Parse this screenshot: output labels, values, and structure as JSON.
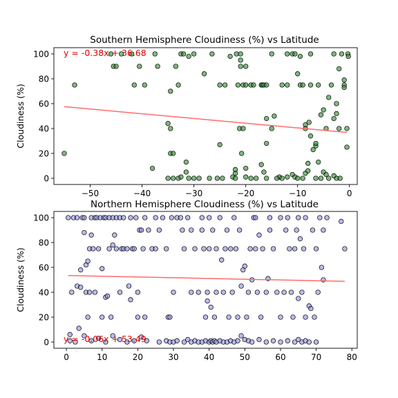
{
  "chart_data": [
    {
      "type": "scatter",
      "title": "Southern Hemisphere Cloudiness (%) vs Latitude",
      "xlabel": "",
      "ylabel": "Cloudiness (%)",
      "xlim": [
        -57,
        1.5
      ],
      "ylim": [
        -5,
        105
      ],
      "xticks": [
        -50,
        -40,
        -30,
        -20,
        -10,
        0
      ],
      "yticks": [
        0,
        20,
        40,
        60,
        80,
        100
      ],
      "grid": false,
      "point_color": "#2e8b2e",
      "point_edge": "#000000",
      "line_color": "#ff6b6b",
      "regression": {
        "slope": -0.38,
        "intercept": 36.68,
        "equation": "y = -0.38x + 36.68",
        "x_start": -55,
        "x_end": -0.5
      },
      "points": [
        [
          -55,
          20
        ],
        [
          -53,
          75
        ],
        [
          -46,
          100
        ],
        [
          -45.5,
          90
        ],
        [
          -45,
          90
        ],
        [
          -44,
          100
        ],
        [
          -42,
          100
        ],
        [
          -41.5,
          75
        ],
        [
          -40.5,
          90
        ],
        [
          -39.5,
          75
        ],
        [
          -37.5,
          100
        ],
        [
          -37,
          90
        ],
        [
          -38,
          8
        ],
        [
          -35,
          44
        ],
        [
          -34.5,
          40
        ],
        [
          -34.5,
          70
        ],
        [
          -34.5,
          20
        ],
        [
          -34,
          20
        ],
        [
          -33.5,
          90
        ],
        [
          -33,
          75
        ],
        [
          -32.5,
          100
        ],
        [
          -32,
          100
        ],
        [
          -31.5,
          13
        ],
        [
          -31.5,
          5
        ],
        [
          -31,
          98
        ],
        [
          -30,
          100
        ],
        [
          -28,
          84
        ],
        [
          -26.5,
          100
        ],
        [
          -25,
          75
        ],
        [
          -25,
          27
        ],
        [
          -24,
          75
        ],
        [
          -23,
          98
        ],
        [
          -22.5,
          1
        ],
        [
          -22,
          4
        ],
        [
          -22,
          7
        ],
        [
          -21.8,
          100
        ],
        [
          -21.5,
          75
        ],
        [
          -21,
          100
        ],
        [
          -21,
          95
        ],
        [
          -21,
          90
        ],
        [
          -21.2,
          40
        ],
        [
          -20.8,
          20
        ],
        [
          -20.5,
          40
        ],
        [
          -20.5,
          75
        ],
        [
          -20,
          90
        ],
        [
          -20,
          75
        ],
        [
          -20,
          8
        ],
        [
          -19,
          75
        ],
        [
          -18.5,
          75
        ],
        [
          -17,
          75
        ],
        [
          -16.8,
          75
        ],
        [
          -16.5,
          75
        ],
        [
          -16,
          75
        ],
        [
          -17,
          11
        ],
        [
          -16.5,
          5
        ],
        [
          -16,
          28
        ],
        [
          -16,
          48
        ],
        [
          -15,
          100
        ],
        [
          -15,
          40
        ],
        [
          -14.5,
          50
        ],
        [
          -13.5,
          1
        ],
        [
          -13,
          75
        ],
        [
          -12,
          75
        ],
        [
          -12,
          100
        ],
        [
          -11,
          100
        ],
        [
          -10.5,
          100
        ],
        [
          -11,
          3
        ],
        [
          -10.5,
          1
        ],
        [
          -10,
          84
        ],
        [
          -9.5,
          75
        ],
        [
          -9.5,
          98
        ],
        [
          -9,
          75
        ],
        [
          -8.5,
          40
        ],
        [
          -8.5,
          43
        ],
        [
          -8.5,
          4
        ],
        [
          -8,
          12
        ],
        [
          -8,
          6
        ],
        [
          -7.8,
          45
        ],
        [
          -7.5,
          34
        ],
        [
          -7.5,
          75
        ],
        [
          -7.5,
          100
        ],
        [
          -7,
          23
        ],
        [
          -6.5,
          26
        ],
        [
          -6.5,
          28
        ],
        [
          -6,
          13
        ],
        [
          -6,
          75
        ],
        [
          -5.5,
          51
        ],
        [
          -5,
          55
        ],
        [
          -5,
          5
        ],
        [
          -4.5,
          3
        ],
        [
          -4.5,
          40
        ],
        [
          -4,
          65
        ],
        [
          -3.5,
          75
        ],
        [
          -3,
          48
        ],
        [
          -3,
          100
        ],
        [
          -2.5,
          60
        ],
        [
          -2.5,
          52
        ],
        [
          -2,
          88
        ],
        [
          -2,
          40
        ],
        [
          -1.5,
          100
        ],
        [
          -1,
          79
        ],
        [
          -1,
          75
        ],
        [
          -1,
          73
        ],
        [
          -0.5,
          25
        ],
        [
          -0.5,
          40
        ],
        [
          -0.3,
          100
        ],
        [
          -0.2,
          98
        ],
        [
          -2.5,
          0
        ],
        [
          -5.5,
          0
        ],
        [
          -10,
          0
        ],
        [
          -13,
          0
        ],
        [
          -16,
          0
        ],
        [
          -19,
          0
        ],
        [
          -22,
          0
        ],
        [
          -24.5,
          0
        ],
        [
          -27,
          0
        ],
        [
          -29,
          0
        ],
        [
          -31,
          0
        ],
        [
          -33,
          0
        ],
        [
          -34,
          0
        ],
        [
          -35,
          0
        ],
        [
          -30,
          0
        ],
        [
          -25.5,
          0
        ],
        [
          -18,
          0
        ],
        [
          -14,
          0
        ],
        [
          -9,
          0
        ],
        [
          -6.5,
          0
        ],
        [
          -4,
          0
        ],
        [
          -1.8,
          0
        ],
        [
          -12,
          1
        ],
        [
          -20,
          1
        ],
        [
          -32.5,
          1
        ],
        [
          -3,
          2
        ]
      ]
    },
    {
      "type": "scatter",
      "title": "Northern Hemisphere Cloudiness (%) vs Latitude",
      "xlabel": "",
      "ylabel": "Cloudiness (%)",
      "xlim": [
        -3.5,
        81.5
      ],
      "ylim": [
        -5,
        105
      ],
      "xticks": [
        0,
        10,
        20,
        30,
        40,
        50,
        60,
        70,
        80
      ],
      "yticks": [
        0,
        20,
        40,
        60,
        80,
        100
      ],
      "grid": false,
      "point_color": "#8f8fe0",
      "point_edge": "#000000",
      "line_color": "#ff6b6b",
      "regression": {
        "slope": -0.06,
        "intercept": 53.49,
        "equation": "y = -0.06x + 53.49",
        "x_start": 0.5,
        "x_end": 78
      },
      "points": [
        [
          0.5,
          100
        ],
        [
          1,
          6
        ],
        [
          1.5,
          40
        ],
        [
          2,
          100
        ],
        [
          3,
          100
        ],
        [
          3,
          45
        ],
        [
          3.5,
          11
        ],
        [
          4,
          44
        ],
        [
          4,
          58
        ],
        [
          4.5,
          100
        ],
        [
          5,
          88
        ],
        [
          5,
          100
        ],
        [
          5.5,
          62
        ],
        [
          5.5,
          40
        ],
        [
          6,
          65
        ],
        [
          6,
          20
        ],
        [
          6.5,
          75
        ],
        [
          6.5,
          40
        ],
        [
          7,
          100
        ],
        [
          7,
          86
        ],
        [
          7.5,
          75
        ],
        [
          8,
          100
        ],
        [
          8,
          40
        ],
        [
          8.5,
          100
        ],
        [
          9,
          75
        ],
        [
          9.5,
          100
        ],
        [
          10,
          59
        ],
        [
          10,
          20
        ],
        [
          10.5,
          100
        ],
        [
          11,
          100
        ],
        [
          11,
          36
        ],
        [
          11.5,
          37
        ],
        [
          12,
          100
        ],
        [
          12,
          75
        ],
        [
          12.5,
          20
        ],
        [
          13,
          100
        ],
        [
          13,
          78
        ],
        [
          13.5,
          86
        ],
        [
          14,
          100
        ],
        [
          14,
          75
        ],
        [
          15,
          100
        ],
        [
          15,
          40
        ],
        [
          15.5,
          75
        ],
        [
          16,
          100
        ],
        [
          16,
          75
        ],
        [
          17,
          75
        ],
        [
          17.5,
          45
        ],
        [
          18,
          100
        ],
        [
          18,
          34
        ],
        [
          18.5,
          75
        ],
        [
          19,
          75
        ],
        [
          19.5,
          100
        ],
        [
          20,
          40
        ],
        [
          20,
          20
        ],
        [
          20.5,
          90
        ],
        [
          21,
          90
        ],
        [
          21.5,
          75
        ],
        [
          22,
          100
        ],
        [
          22,
          20
        ],
        [
          23,
          90
        ],
        [
          24,
          75
        ],
        [
          25,
          100
        ],
        [
          25,
          75
        ],
        [
          26,
          90
        ],
        [
          27,
          100
        ],
        [
          28,
          75
        ],
        [
          28.5,
          20
        ],
        [
          29,
          20
        ],
        [
          29.5,
          100
        ],
        [
          30,
          40
        ],
        [
          31,
          100
        ],
        [
          32,
          100
        ],
        [
          32.5,
          90
        ],
        [
          33,
          75
        ],
        [
          34,
          100
        ],
        [
          35,
          40
        ],
        [
          35,
          90
        ],
        [
          36,
          75
        ],
        [
          37,
          40
        ],
        [
          38,
          90
        ],
        [
          38,
          100
        ],
        [
          38.5,
          75
        ],
        [
          39,
          20
        ],
        [
          39.5,
          40
        ],
        [
          39.5,
          33
        ],
        [
          40,
          75
        ],
        [
          40,
          100
        ],
        [
          40.5,
          28
        ],
        [
          41,
          90
        ],
        [
          41.5,
          20
        ],
        [
          42,
          40
        ],
        [
          42,
          75
        ],
        [
          43,
          100
        ],
        [
          43.5,
          66
        ],
        [
          44,
          40
        ],
        [
          44.5,
          75
        ],
        [
          45,
          90
        ],
        [
          45.5,
          20
        ],
        [
          46,
          75
        ],
        [
          46.5,
          40
        ],
        [
          47,
          100
        ],
        [
          47.5,
          75
        ],
        [
          48,
          20
        ],
        [
          48.5,
          90
        ],
        [
          49,
          45
        ],
        [
          49.5,
          58
        ],
        [
          50,
          61
        ],
        [
          50.5,
          20
        ],
        [
          51,
          40
        ],
        [
          51.5,
          75
        ],
        [
          52,
          50
        ],
        [
          52.5,
          100
        ],
        [
          53,
          100
        ],
        [
          53,
          75
        ],
        [
          53.5,
          40
        ],
        [
          54,
          86
        ],
        [
          54.5,
          20
        ],
        [
          55,
          75
        ],
        [
          56,
          40
        ],
        [
          56.5,
          51
        ],
        [
          57,
          100
        ],
        [
          57,
          90
        ],
        [
          58,
          75
        ],
        [
          59,
          40
        ],
        [
          60,
          100
        ],
        [
          60,
          20
        ],
        [
          61,
          40
        ],
        [
          61.5,
          90
        ],
        [
          62,
          100
        ],
        [
          62.5,
          75
        ],
        [
          63,
          40
        ],
        [
          63.5,
          20
        ],
        [
          64,
          75
        ],
        [
          64.5,
          90
        ],
        [
          65,
          100
        ],
        [
          65,
          35
        ],
        [
          65.5,
          83
        ],
        [
          66,
          40
        ],
        [
          66.5,
          75
        ],
        [
          67,
          100
        ],
        [
          67,
          20
        ],
        [
          68,
          29
        ],
        [
          68.5,
          27
        ],
        [
          69,
          90
        ],
        [
          69.5,
          20
        ],
        [
          70,
          75
        ],
        [
          70.5,
          40
        ],
        [
          71,
          100
        ],
        [
          71.5,
          60
        ],
        [
          72,
          90
        ],
        [
          72,
          50
        ],
        [
          73,
          100
        ],
        [
          77,
          97
        ],
        [
          78,
          75
        ],
        [
          1,
          1
        ],
        [
          2.5,
          0
        ],
        [
          5,
          5
        ],
        [
          7,
          1
        ],
        [
          9,
          3
        ],
        [
          11,
          0
        ],
        [
          13,
          5
        ],
        [
          15,
          2
        ],
        [
          17,
          0
        ],
        [
          19,
          1
        ],
        [
          21,
          4
        ],
        [
          22.5,
          1
        ],
        [
          26,
          0
        ],
        [
          28,
          1
        ],
        [
          29,
          0
        ],
        [
          30,
          0
        ],
        [
          31,
          1
        ],
        [
          33,
          0
        ],
        [
          34,
          2
        ],
        [
          35,
          0
        ],
        [
          36,
          1
        ],
        [
          37,
          0
        ],
        [
          38,
          0
        ],
        [
          39,
          1
        ],
        [
          40,
          0
        ],
        [
          40.5,
          1
        ],
        [
          41,
          0
        ],
        [
          41.5,
          1
        ],
        [
          42,
          0
        ],
        [
          43,
          1
        ],
        [
          44,
          0
        ],
        [
          45,
          0
        ],
        [
          46,
          1
        ],
        [
          47,
          0
        ],
        [
          48,
          1
        ],
        [
          49,
          5
        ],
        [
          50,
          2
        ],
        [
          51,
          1
        ],
        [
          52,
          0
        ],
        [
          54,
          2
        ],
        [
          56,
          0
        ],
        [
          58,
          1
        ],
        [
          60,
          0
        ],
        [
          62,
          1
        ],
        [
          64,
          0
        ],
        [
          65,
          2
        ],
        [
          66,
          0
        ],
        [
          67,
          1
        ],
        [
          68,
          0
        ],
        [
          70,
          0
        ]
      ]
    }
  ]
}
